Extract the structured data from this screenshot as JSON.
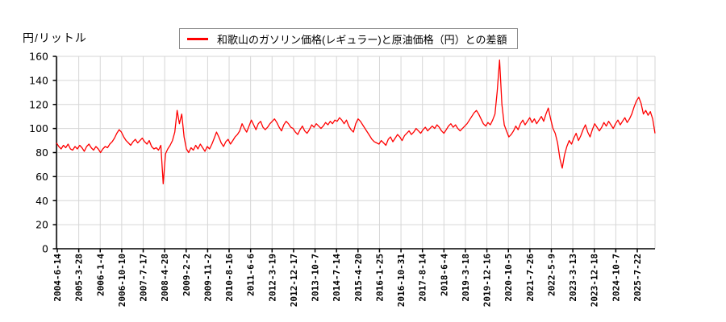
{
  "unit_label": "円/リットル",
  "colors": {
    "line": "#ff0000",
    "grid": "#d6d6d6",
    "axis": "#000000",
    "legend_border": "#8c8c8c",
    "background": "#ffffff"
  },
  "chart_data": {
    "type": "line",
    "title": "和歌山のガソリン価格(レギュラー)と原油価格（円）との差額",
    "ylabel": "円/リットル",
    "xlabel": "",
    "ylim": [
      0,
      160
    ],
    "y_ticks": [
      0,
      20,
      40,
      60,
      80,
      100,
      120,
      140,
      160
    ],
    "grid": true,
    "legend_position": "top-center",
    "x_tick_labels": [
      "2004-6-14",
      "2005-3-28",
      "2006-1-4",
      "2006-10-10",
      "2007-7-17",
      "2008-4-28",
      "2009-2-2",
      "2009-11-2",
      "2010-8-16",
      "2011-6-6",
      "2012-3-19",
      "2012-12-17",
      "2013-10-7",
      "2014-7-14",
      "2015-4-20",
      "2016-1-25",
      "2016-10-31",
      "2017-8-14",
      "2018-6-4",
      "2019-3-18",
      "2019-12-16",
      "2020-10-5",
      "2021-7-26",
      "2022-5-9",
      "2023-3-13",
      "2023-12-18",
      "2024-10-7",
      "2025-7-22"
    ],
    "x_start": "2004-6",
    "x_end": "2025-12",
    "x_sampling": "monthly",
    "series": [
      {
        "name": "和歌山のガソリン価格(レギュラー)と原油価格（円）との差額",
        "color": "#ff0000",
        "values": [
          88,
          85,
          83,
          86,
          84,
          87,
          83,
          82,
          85,
          83,
          86,
          84,
          81,
          85,
          87,
          84,
          82,
          85,
          83,
          80,
          83,
          85,
          84,
          87,
          89,
          92,
          96,
          99,
          97,
          93,
          90,
          88,
          86,
          89,
          91,
          88,
          90,
          92,
          89,
          87,
          90,
          85,
          83,
          84,
          82,
          86,
          54,
          79,
          83,
          86,
          90,
          97,
          115,
          104,
          112,
          93,
          83,
          80,
          84,
          82,
          86,
          83,
          87,
          84,
          81,
          85,
          83,
          87,
          92,
          97,
          93,
          88,
          85,
          89,
          91,
          87,
          90,
          93,
          95,
          98,
          104,
          100,
          97,
          102,
          107,
          103,
          99,
          104,
          106,
          101,
          99,
          101,
          104,
          106,
          108,
          105,
          101,
          98,
          103,
          106,
          104,
          101,
          100,
          97,
          95,
          99,
          102,
          98,
          96,
          99,
          103,
          101,
          104,
          102,
          100,
          102,
          105,
          103,
          106,
          104,
          107,
          106,
          109,
          107,
          104,
          107,
          102,
          99,
          97,
          104,
          108,
          106,
          103,
          100,
          97,
          94,
          91,
          89,
          88,
          87,
          90,
          88,
          86,
          91,
          93,
          89,
          92,
          95,
          93,
          90,
          94,
          96,
          98,
          95,
          97,
          100,
          98,
          96,
          99,
          101,
          98,
          100,
          102,
          100,
          103,
          101,
          98,
          96,
          99,
          102,
          104,
          101,
          103,
          100,
          98,
          100,
          102,
          104,
          107,
          110,
          113,
          115,
          112,
          108,
          104,
          102,
          105,
          103,
          107,
          112,
          131,
          157,
          120,
          103,
          98,
          93,
          95,
          98,
          102,
          99,
          104,
          107,
          103,
          106,
          109,
          105,
          108,
          104,
          107,
          110,
          106,
          112,
          117,
          108,
          100,
          96,
          88,
          75,
          67,
          78,
          85,
          90,
          87,
          92,
          96,
          90,
          94,
          99,
          103,
          97,
          93,
          99,
          104,
          101,
          98,
          101,
          105,
          102,
          106,
          103,
          100,
          104,
          107,
          103,
          106,
          109,
          105,
          108,
          112,
          118,
          123,
          126,
          121,
          112,
          115,
          111,
          114,
          108,
          96
        ]
      }
    ]
  }
}
